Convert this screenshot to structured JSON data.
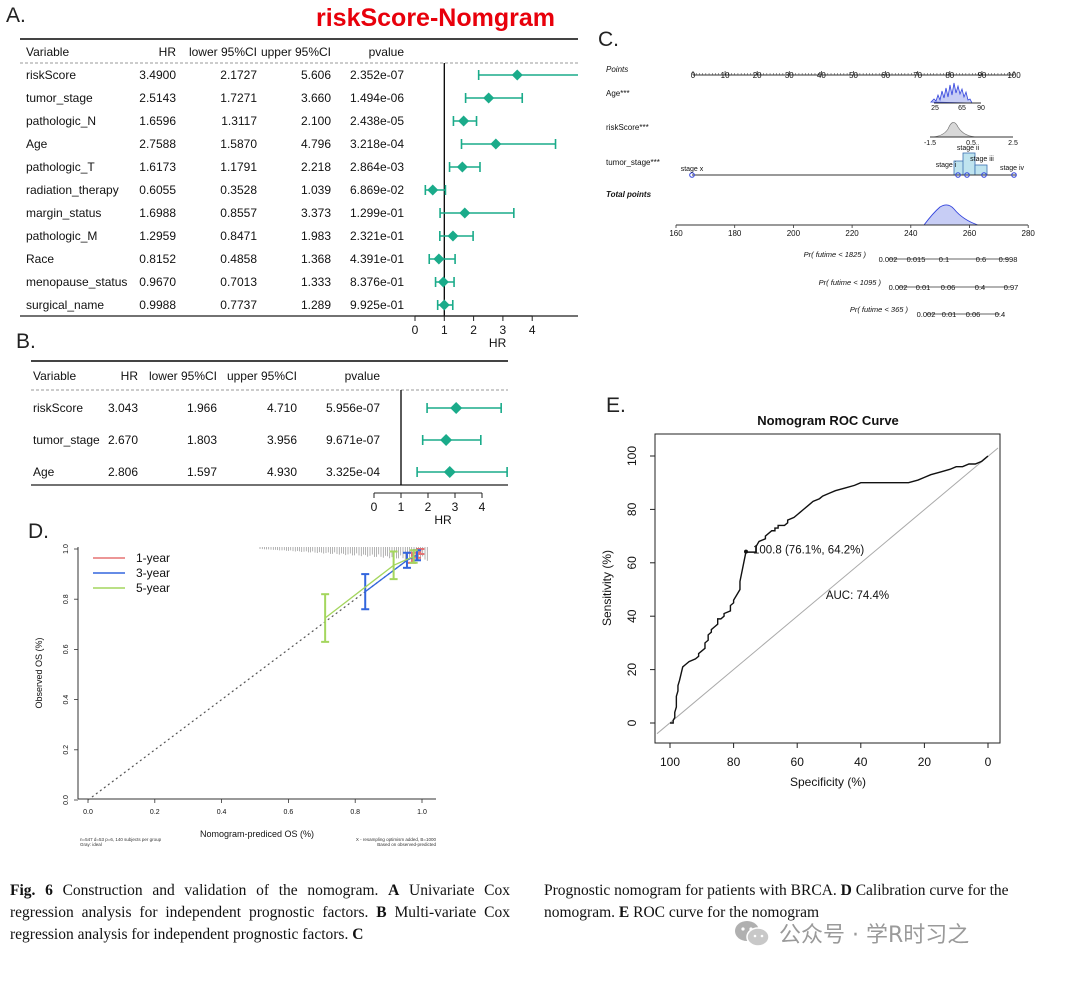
{
  "panels": {
    "A": {
      "letter": "A.",
      "title": "riskScore-Nomgram",
      "headers": [
        "Variable",
        "HR",
        "lower 95%CI",
        "upper 95%CI",
        "pvalue"
      ],
      "rows": [
        {
          "variable": "riskScore",
          "hr": "3.4900",
          "lower": "2.1727",
          "upper": "5.606",
          "pvalue": "2.352e-07"
        },
        {
          "variable": "tumor_stage",
          "hr": "2.5143",
          "lower": "1.7271",
          "upper": "3.660",
          "pvalue": "1.494e-06"
        },
        {
          "variable": "pathologic_N",
          "hr": "1.6596",
          "lower": "1.3117",
          "upper": "2.100",
          "pvalue": "2.438e-05"
        },
        {
          "variable": "Age",
          "hr": "2.7588",
          "lower": "1.5870",
          "upper": "4.796",
          "pvalue": "3.218e-04"
        },
        {
          "variable": "pathologic_T",
          "hr": "1.6173",
          "lower": "1.1791",
          "upper": "2.218",
          "pvalue": "2.864e-03"
        },
        {
          "variable": "radiation_therapy",
          "hr": "0.6055",
          "lower": "0.3528",
          "upper": "1.039",
          "pvalue": "6.869e-02"
        },
        {
          "variable": "margin_status",
          "hr": "1.6988",
          "lower": "0.8557",
          "upper": "3.373",
          "pvalue": "1.299e-01"
        },
        {
          "variable": "pathologic_M",
          "hr": "1.2959",
          "lower": "0.8471",
          "upper": "1.983",
          "pvalue": "2.321e-01"
        },
        {
          "variable": "Race",
          "hr": "0.8152",
          "lower": "0.4858",
          "upper": "1.368",
          "pvalue": "4.391e-01"
        },
        {
          "variable": "menopause_status",
          "hr": "0.9670",
          "lower": "0.7013",
          "upper": "1.333",
          "pvalue": "8.376e-01"
        },
        {
          "variable": "surgical_name",
          "hr": "0.9988",
          "lower": "0.7737",
          "upper": "1.289",
          "pvalue": "9.925e-01"
        }
      ],
      "axis_ticks": [
        "0",
        "1",
        "2",
        "3",
        "4"
      ],
      "xlabel": "HR"
    },
    "B": {
      "letter": "B.",
      "headers": [
        "Variable",
        "HR",
        "lower 95%CI",
        "upper 95%CI",
        "pvalue"
      ],
      "rows": [
        {
          "variable": "riskScore",
          "hr": "3.043",
          "lower": "1.966",
          "upper": "4.710",
          "pvalue": "5.956e-07"
        },
        {
          "variable": "tumor_stage",
          "hr": "2.670",
          "lower": "1.803",
          "upper": "3.956",
          "pvalue": "9.671e-07"
        },
        {
          "variable": "Age",
          "hr": "2.806",
          "lower": "1.597",
          "upper": "4.930",
          "pvalue": "3.325e-04"
        }
      ],
      "axis_ticks": [
        "0",
        "1",
        "2",
        "3",
        "4"
      ],
      "xlabel": "HR"
    },
    "C": {
      "letter": "C.",
      "points_label": "Points",
      "points_ticks": [
        "0",
        "10",
        "20",
        "30",
        "40",
        "50",
        "60",
        "70",
        "80",
        "90",
        "100"
      ],
      "age_label": "Age***",
      "age_ticks": [
        "25",
        "65",
        "90"
      ],
      "risk_label": "riskScore***",
      "risk_ticks": [
        "-1.5",
        "0.5",
        "2.5"
      ],
      "risk_sub": "stage ii",
      "stage_label": "tumor_stage***",
      "stage_ticks": [
        "stage x",
        "stage i",
        "stage iii",
        "stage iv"
      ],
      "total_label": "Total points",
      "total_ticks": [
        "160",
        "180",
        "200",
        "220",
        "240",
        "260",
        "280"
      ],
      "pr_rows": [
        {
          "label": "Pr( futime < 1825 )",
          "ticks": [
            "0.002",
            "0.015",
            "0.1",
            "0.6",
            "0.998"
          ]
        },
        {
          "label": "Pr( futime < 1095 )",
          "ticks": [
            "0.002",
            "0.01",
            "0.06",
            "0.4",
            "0.97"
          ]
        },
        {
          "label": "Pr( futime < 365 )",
          "ticks": [
            "0.002",
            "0.01",
            "0.06",
            "0.4"
          ]
        }
      ]
    },
    "D": {
      "letter": "D.",
      "legend": [
        "1-year",
        "3-year",
        "5-year"
      ],
      "xlabel": "Nomogram-prediced OS (%)",
      "ylabel": "Observed OS (%)",
      "ticks": [
        "0.0",
        "0.2",
        "0.4",
        "0.6",
        "0.8",
        "1.0"
      ],
      "note_left_1": "n=547 d=53 p=6, 140 subjects per group",
      "note_left_2": "Gray: ideal",
      "note_right_1": "X - resampling optimism added, B=1000",
      "note_right_2": "Based on observed-predicted"
    },
    "E": {
      "letter": "E.",
      "title": "Nomogram ROC Curve",
      "xlabel": "Specificity (%)",
      "ylabel": "Sensitivity (%)",
      "x_ticks": [
        "100",
        "80",
        "60",
        "40",
        "20",
        "0"
      ],
      "y_ticks": [
        "0",
        "20",
        "40",
        "60",
        "80",
        "100"
      ],
      "threshold_label": "100.8 (76.1%, 64.2%)",
      "auc_label": "AUC: 74.4%"
    }
  },
  "caption": {
    "fig_label": "Fig. 6",
    "left_text_1": " Construction and validation of the nomogram. ",
    "A": "A",
    "left_text_2": " Univariate Cox regression analysis for independent prognostic factors. ",
    "B": "B",
    "left_text_3": " Multi-variate Cox regression analysis for independent prognostic factors. ",
    "C": "C",
    "right_text_1": "Prognostic nomogram for patients with BRCA. ",
    "D": "D",
    "right_text_2": " Calibration curve for the nomogram. ",
    "E": "E",
    "right_text_3": " ROC curve for the nomogram"
  },
  "watermark": "公众号 · 学R时习之",
  "colors": {
    "forest": "#1aab8a",
    "red": "#e8000b",
    "cal_1": "#e57373",
    "cal_3": "#3366dd",
    "cal_5": "#a4d65e"
  },
  "chart_data": [
    {
      "type": "forest",
      "xlabel": "HR",
      "ylim": [
        0,
        4
      ],
      "categories": [
        "riskScore",
        "tumor_stage",
        "pathologic_N",
        "Age",
        "pathologic_T",
        "radiation_therapy",
        "margin_status",
        "pathologic_M",
        "Race",
        "menopause_status",
        "surgical_name"
      ],
      "hr": [
        3.49,
        2.5143,
        1.6596,
        2.7588,
        1.6173,
        0.6055,
        1.6988,
        1.2959,
        0.8152,
        0.967,
        0.9988
      ],
      "lower": [
        2.1727,
        1.7271,
        1.3117,
        1.587,
        1.1791,
        0.3528,
        0.8557,
        0.8471,
        0.4858,
        0.7013,
        0.7737
      ],
      "upper": [
        5.606,
        3.66,
        2.1,
        4.796,
        2.218,
        1.039,
        3.373,
        1.983,
        1.368,
        1.333,
        1.289
      ]
    },
    {
      "type": "forest",
      "xlabel": "HR",
      "categories": [
        "riskScore",
        "tumor_stage",
        "Age"
      ],
      "hr": [
        3.043,
        2.67,
        2.806
      ],
      "lower": [
        1.966,
        1.803,
        1.597
      ],
      "upper": [
        4.71,
        3.956,
        4.93
      ]
    },
    {
      "type": "line",
      "title": "",
      "xlabel": "Nomogram-prediced OS (%)",
      "ylabel": "Observed OS (%)",
      "xlim": [
        0,
        1
      ],
      "ylim": [
        0,
        1
      ],
      "series": [
        {
          "name": "1-year",
          "x": [
            0.97,
            0.985,
            0.995
          ],
          "y": [
            0.965,
            0.98,
            0.99
          ],
          "err": [
            0.02,
            0.015,
            0.01
          ]
        },
        {
          "name": "3-year",
          "x": [
            0.83,
            0.955,
            0.985
          ],
          "y": [
            0.83,
            0.955,
            0.975
          ],
          "err": [
            0.07,
            0.03,
            0.02
          ]
        },
        {
          "name": "5-year",
          "x": [
            0.71,
            0.915,
            0.975
          ],
          "y": [
            0.725,
            0.935,
            0.97
          ],
          "err": [
            0.095,
            0.055,
            0.025
          ]
        }
      ]
    },
    {
      "type": "line",
      "title": "Nomogram ROC Curve",
      "xlabel": "Specificity (%)",
      "ylabel": "Sensitivity (%)",
      "xlim": [
        100,
        0
      ],
      "ylim": [
        0,
        100
      ],
      "auc": 74.4,
      "series": [
        {
          "name": "ROC",
          "x": [
            100,
            99,
            99,
            98.5,
            98.5,
            98,
            98,
            97.5,
            97.5,
            97,
            96,
            95,
            94,
            94,
            92,
            92,
            91,
            91,
            90,
            89,
            89,
            88,
            88,
            87,
            87,
            86,
            85,
            85,
            84,
            83,
            83,
            81,
            81,
            80,
            80,
            79,
            78,
            78,
            76.1,
            76,
            73,
            73,
            72,
            70,
            70,
            68,
            67,
            67,
            66,
            66,
            64,
            63,
            63,
            61,
            60,
            59,
            58,
            56,
            55,
            53,
            52,
            50,
            48,
            45,
            45,
            42,
            40,
            35,
            30,
            25,
            22,
            22,
            20,
            18,
            18,
            15,
            12,
            10,
            8,
            6,
            4,
            2,
            1,
            0
          ],
          "y": [
            0,
            0,
            1,
            2,
            4,
            6,
            10,
            12,
            14,
            16,
            21,
            22,
            23,
            23,
            24,
            24,
            25,
            26,
            27,
            28,
            30,
            31,
            33,
            34,
            35,
            36,
            37,
            39,
            39,
            40,
            41,
            42,
            44,
            45,
            46,
            48,
            50,
            53,
            64.2,
            64,
            64,
            66,
            68,
            69,
            70,
            72,
            72,
            73,
            73,
            74,
            74,
            75,
            76,
            77,
            78,
            79,
            80,
            82,
            83,
            84,
            85,
            86,
            87,
            88,
            88,
            89,
            90,
            90,
            90,
            90,
            91,
            91,
            92,
            93,
            93,
            94,
            95,
            96,
            96,
            97,
            97,
            98,
            99,
            100
          ]
        }
      ]
    }
  ]
}
